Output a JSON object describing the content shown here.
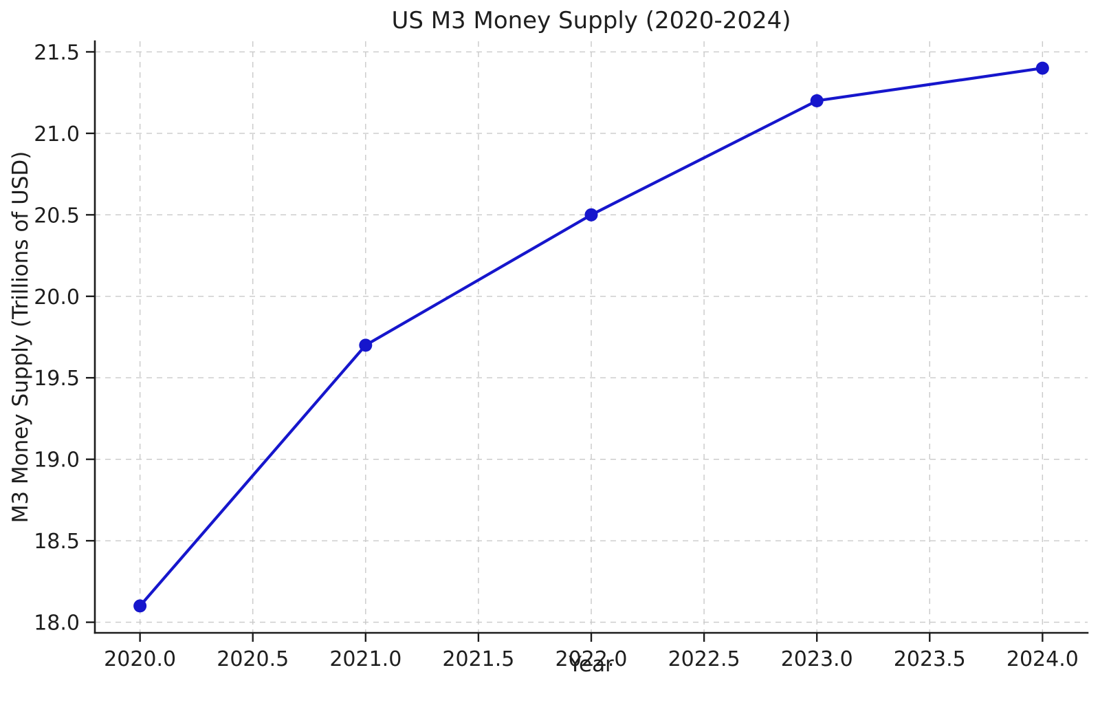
{
  "chart_data": {
    "type": "line",
    "title": "US M3 Money Supply (2020-2024)",
    "xlabel": "Year",
    "ylabel": "M3 Money Supply (Trillions of USD)",
    "x": [
      2020,
      2021,
      2022,
      2023,
      2024
    ],
    "y": [
      18.1,
      19.7,
      20.5,
      21.2,
      21.4
    ],
    "xlim": [
      2019.8,
      2024.2
    ],
    "ylim": [
      17.935,
      21.565
    ],
    "xticks": {
      "values": [
        2020.0,
        2020.5,
        2021.0,
        2021.5,
        2022.0,
        2022.5,
        2023.0,
        2023.5,
        2024.0
      ],
      "labels": [
        "2020.0",
        "2020.5",
        "2021.0",
        "2021.5",
        "2022.0",
        "2022.5",
        "2023.0",
        "2023.5",
        "2024.0"
      ]
    },
    "yticks": {
      "values": [
        18.0,
        18.5,
        19.0,
        19.5,
        20.0,
        20.5,
        21.0,
        21.5
      ],
      "labels": [
        "18.0",
        "18.5",
        "19.0",
        "19.5",
        "20.0",
        "20.5",
        "21.0",
        "21.5"
      ]
    },
    "grid": true,
    "grid_style": "dashed",
    "legend_position": "none",
    "marker": "circle",
    "colors": {
      "line": "#1616cc",
      "marker": "#1616cc",
      "grid": "#c9c9c9",
      "axis": "#1c1c1c",
      "text": "#1e1e1e",
      "background": "#ffffff"
    }
  }
}
